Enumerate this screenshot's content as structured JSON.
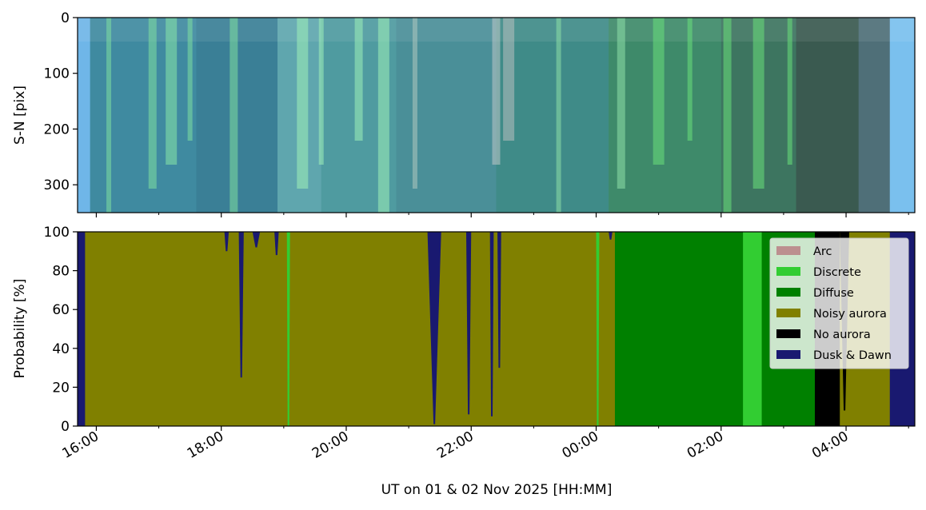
{
  "chart_data": [
    {
      "type": "heatmap",
      "description_role": "keogram",
      "ylabel": "S-N [pix]",
      "y_ticks": [
        0,
        100,
        200,
        300
      ],
      "ylim": [
        350,
        0
      ],
      "x_ticks": [
        "16:00",
        "18:00",
        "20:00",
        "22:00",
        "00:00",
        "02:00",
        "04:00"
      ],
      "xlim_hours": [
        15.7,
        29.1
      ],
      "bands": [
        {
          "x_start": 15.7,
          "x_end": 15.9,
          "color": "#6fb6e8"
        },
        {
          "x_start": 15.9,
          "x_end": 17.6,
          "color": "#3f8aa0"
        },
        {
          "x_start": 17.6,
          "x_end": 18.9,
          "color": "#3a7f96"
        },
        {
          "x_start": 18.9,
          "x_end": 19.6,
          "color": "#5fa6ae"
        },
        {
          "x_start": 19.6,
          "x_end": 20.8,
          "color": "#4f9ba0"
        },
        {
          "x_start": 20.8,
          "x_end": 22.4,
          "color": "#4a8f98"
        },
        {
          "x_start": 22.4,
          "x_end": 24.2,
          "color": "#3f8b88"
        },
        {
          "x_start": 24.2,
          "x_end": 26.0,
          "color": "#3e8a6a"
        },
        {
          "x_start": 26.0,
          "x_end": 27.2,
          "color": "#3d7560"
        },
        {
          "x_start": 27.2,
          "x_end": 28.2,
          "color": "#3a5a50"
        },
        {
          "x_start": 28.2,
          "x_end": 28.7,
          "color": "#4f6f78"
        },
        {
          "x_start": 28.7,
          "x_end": 29.1,
          "color": "#7ac0ee"
        }
      ],
      "streaks": [
        {
          "x": 16.2,
          "color": "#7fe0a0"
        },
        {
          "x": 16.9,
          "color": "#7fe0a0"
        },
        {
          "x": 17.2,
          "color": "#88e8a8"
        },
        {
          "x": 17.5,
          "color": "#7fe0a0"
        },
        {
          "x": 18.2,
          "color": "#7fe0a0"
        },
        {
          "x": 19.3,
          "color": "#9ef0b8"
        },
        {
          "x": 19.6,
          "color": "#9ef0b8"
        },
        {
          "x": 20.2,
          "color": "#9ef0b8"
        },
        {
          "x": 20.6,
          "color": "#9ef0b8"
        },
        {
          "x": 21.1,
          "color": "#b0c8c0"
        },
        {
          "x": 22.4,
          "color": "#c0c8c8"
        },
        {
          "x": 22.6,
          "color": "#b8c0c0"
        },
        {
          "x": 23.4,
          "color": "#8ee0a8"
        },
        {
          "x": 24.4,
          "color": "#8ee0a8"
        },
        {
          "x": 25.0,
          "color": "#6ae07a"
        },
        {
          "x": 25.5,
          "color": "#6ae07a"
        },
        {
          "x": 26.1,
          "color": "#6ae07a"
        },
        {
          "x": 26.6,
          "color": "#6ae07a"
        },
        {
          "x": 27.1,
          "color": "#6ae07a"
        }
      ]
    },
    {
      "type": "area",
      "stacked": true,
      "ylabel": "Probability [%]",
      "xlabel": "UT on 01 & 02 Nov 2025 [HH:MM]",
      "ylim": [
        0,
        100
      ],
      "y_ticks": [
        0,
        20,
        40,
        60,
        80,
        100
      ],
      "x_ticks": [
        "16:00",
        "18:00",
        "20:00",
        "22:00",
        "00:00",
        "02:00",
        "04:00"
      ],
      "xlim_hours": [
        15.7,
        29.1
      ],
      "legend_position": "top-right",
      "series": [
        {
          "name": "Arc",
          "color": "#bc8f8f"
        },
        {
          "name": "Discrete",
          "color": "#32cd32"
        },
        {
          "name": "Diffuse",
          "color": "#008000"
        },
        {
          "name": "Noisy aurora",
          "color": "#808000"
        },
        {
          "name": "No aurora",
          "color": "#000000"
        },
        {
          "name": "Dusk & Dawn",
          "color": "#191970"
        }
      ],
      "segments": [
        {
          "x_start": 15.7,
          "x_end": 15.82,
          "class": "Dusk & Dawn"
        },
        {
          "x_start": 15.82,
          "x_end": 23.3,
          "class": "Noisy aurora"
        },
        {
          "x_start": 23.3,
          "x_end": 24.3,
          "class": "Noisy aurora"
        },
        {
          "x_start": 24.3,
          "x_end": 24.45,
          "class": "Diffuse"
        },
        {
          "x_start": 24.45,
          "x_end": 26.35,
          "class": "Diffuse"
        },
        {
          "x_start": 26.35,
          "x_end": 26.65,
          "class": "Discrete"
        },
        {
          "x_start": 26.65,
          "x_end": 27.5,
          "class": "Diffuse"
        },
        {
          "x_start": 27.5,
          "x_end": 27.9,
          "class": "No aurora"
        },
        {
          "x_start": 27.9,
          "x_end": 28.7,
          "class": "Noisy aurora"
        },
        {
          "x_start": 28.7,
          "x_end": 29.1,
          "class": "Dusk & Dawn"
        }
      ],
      "dips": [
        {
          "x_start": 18.05,
          "x_end": 18.12,
          "class": "Dusk & Dawn",
          "depth": 10
        },
        {
          "x_start": 18.28,
          "x_end": 18.36,
          "class": "Dusk & Dawn",
          "depth": 75
        },
        {
          "x_start": 18.5,
          "x_end": 18.62,
          "class": "Dusk & Dawn",
          "depth": 8
        },
        {
          "x_start": 18.85,
          "x_end": 18.92,
          "class": "Dusk & Dawn",
          "depth": 12
        },
        {
          "x_start": 21.3,
          "x_end": 21.52,
          "class": "Dusk & Dawn",
          "depth": 99
        },
        {
          "x_start": 21.92,
          "x_end": 22.0,
          "class": "Dusk & Dawn",
          "depth": 94
        },
        {
          "x_start": 22.3,
          "x_end": 22.36,
          "class": "Dusk & Dawn",
          "depth": 95
        },
        {
          "x_start": 22.42,
          "x_end": 22.48,
          "class": "Dusk & Dawn",
          "depth": 70
        },
        {
          "x_start": 24.2,
          "x_end": 24.26,
          "class": "Dusk & Dawn",
          "depth": 4
        },
        {
          "x_start": 27.9,
          "x_end": 28.05,
          "class": "No aurora",
          "depth": 92
        },
        {
          "x_start": 24.0,
          "x_end": 24.05,
          "class": "Discrete",
          "depth": 100
        },
        {
          "x_start": 19.05,
          "x_end": 19.1,
          "class": "Discrete",
          "depth": 100
        }
      ]
    }
  ]
}
